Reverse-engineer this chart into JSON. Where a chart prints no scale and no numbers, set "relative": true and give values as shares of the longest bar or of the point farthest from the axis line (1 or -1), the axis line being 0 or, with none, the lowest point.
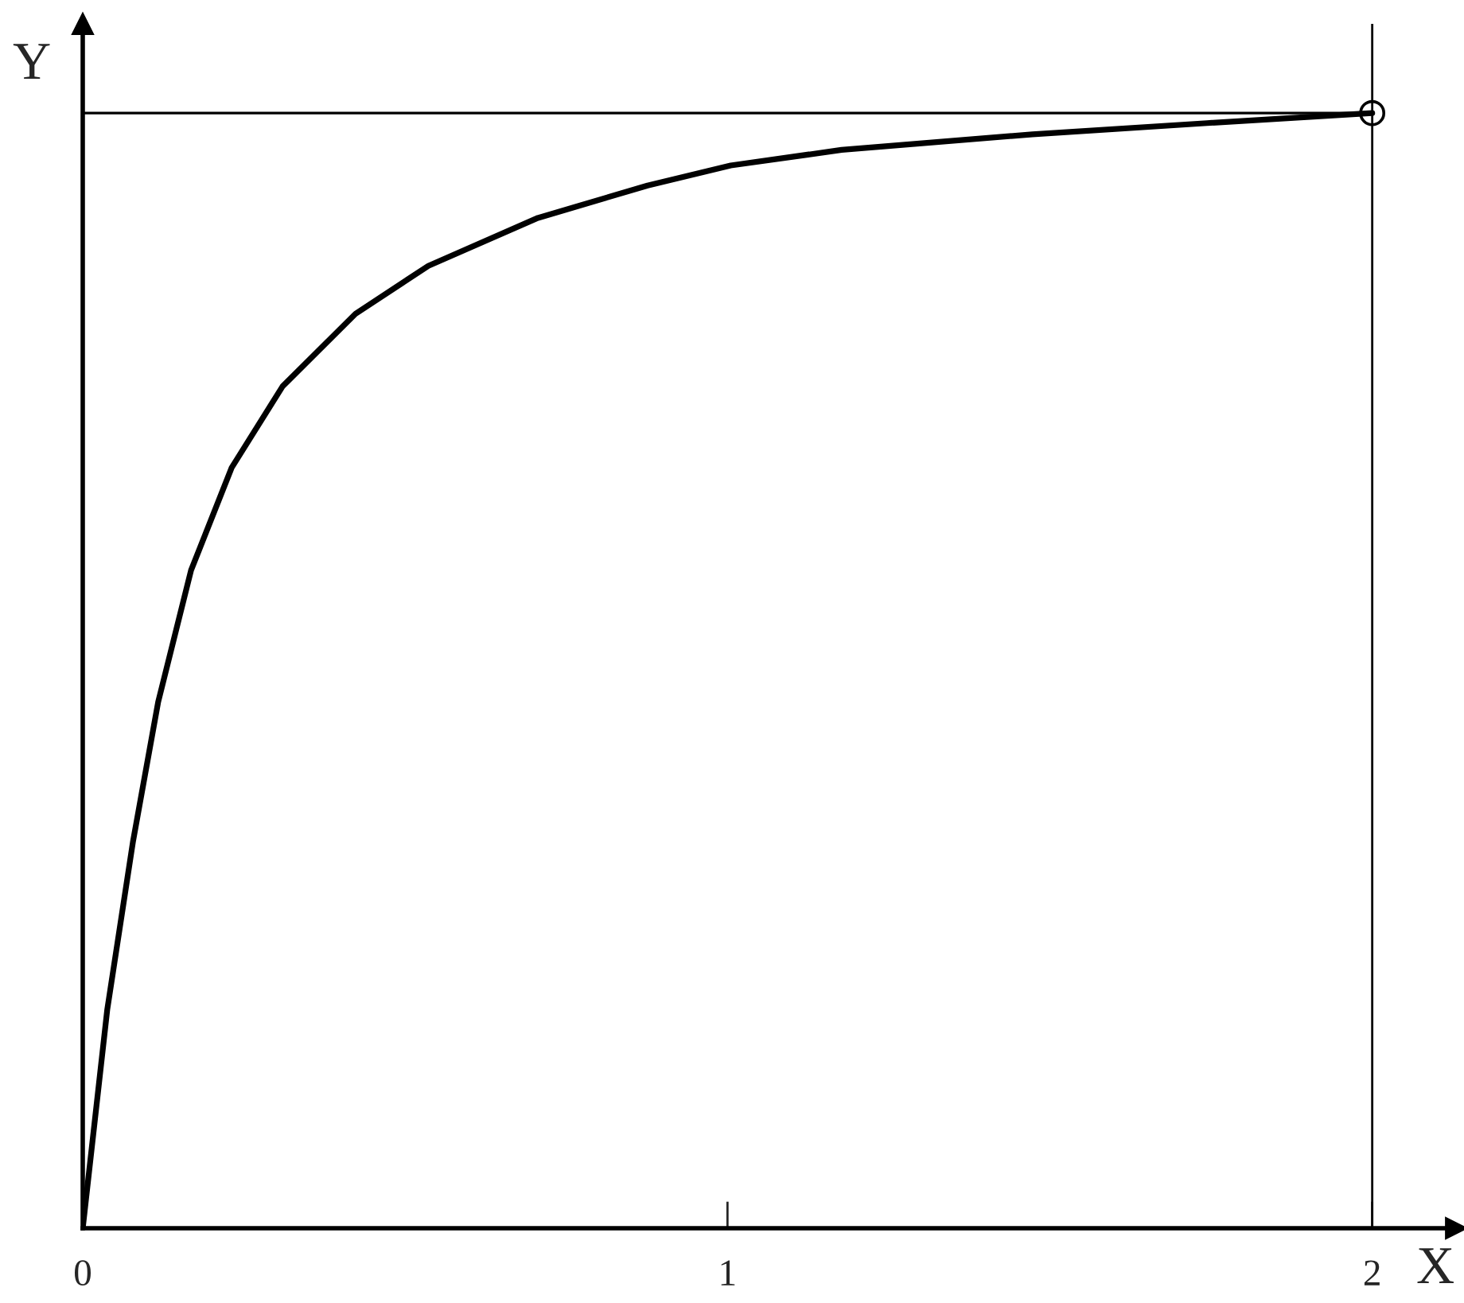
{
  "chart_data": {
    "type": "line",
    "xlabel": "X",
    "ylabel": "Y",
    "relative": true,
    "xlim": [
      0,
      2.13
    ],
    "xticks": [
      0,
      1,
      2
    ],
    "grid": false,
    "legend": false,
    "series": [
      {
        "color": "#000000",
        "x": [
          0,
          0.038,
          0.078,
          0.117,
          0.168,
          0.231,
          0.31,
          0.423,
          0.536,
          0.706,
          0.876,
          1.005,
          1.177,
          1.473,
          1.744,
          2.0
        ],
        "values": [
          0,
          0.196,
          0.347,
          0.472,
          0.59,
          0.682,
          0.755,
          0.82,
          0.863,
          0.906,
          0.935,
          0.953,
          0.967,
          0.981,
          0.991,
          1.0
        ]
      },
      {
        "type": "scatter",
        "color": "#000000",
        "marker": "circle",
        "x": [
          2.0
        ],
        "values": [
          1.0
        ]
      }
    ],
    "ref_lines": [
      {
        "axis": "y",
        "value": 1.0,
        "color": "#000000"
      },
      {
        "axis": "x",
        "value": 2.0,
        "color": "#000000"
      }
    ]
  }
}
